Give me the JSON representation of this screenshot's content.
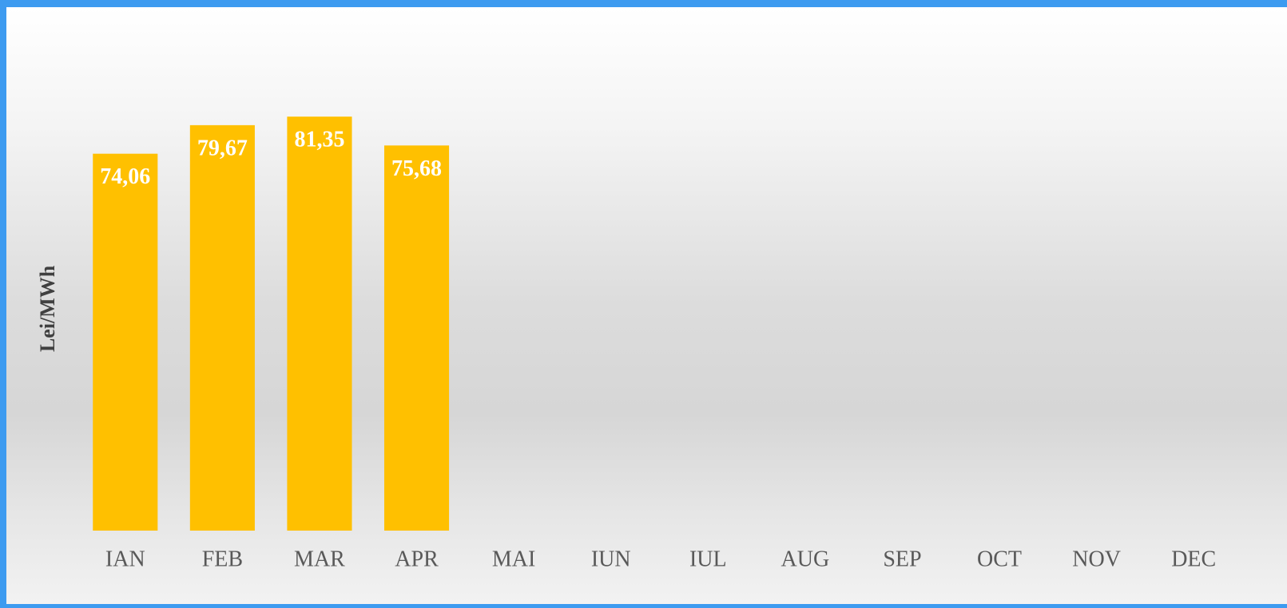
{
  "chart_data": {
    "type": "bar",
    "y_label": "Lei/MWh",
    "categories": [
      "IAN",
      "FEB",
      "MAR",
      "APR",
      "MAI",
      "IUN",
      "IUL",
      "AUG",
      "SEP",
      "OCT",
      "NOV",
      "DEC"
    ],
    "values": [
      74.06,
      79.67,
      81.35,
      75.68,
      null,
      null,
      null,
      null,
      null,
      null,
      null,
      null
    ],
    "value_labels": [
      "74,06",
      "79,67",
      "81,35",
      "75,68",
      null,
      null,
      null,
      null,
      null,
      null,
      null,
      null
    ],
    "color": "#ffc000",
    "ylim": [
      0,
      90
    ]
  }
}
